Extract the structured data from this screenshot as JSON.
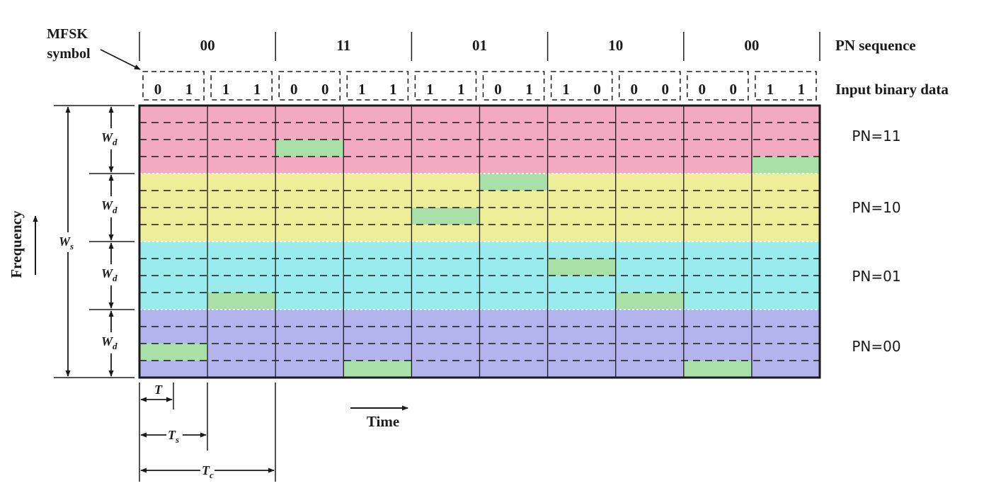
{
  "labels": {
    "mfsk_line1": "MFSK",
    "mfsk_line2": "symbol",
    "pn_sequence": "PN sequence",
    "input_binary_data": "Input binary data",
    "frequency": "Frequency",
    "time": "Time",
    "ws": "W",
    "ws_sub": "s",
    "wd": "W",
    "wd_sub": "d",
    "t": "T",
    "ts": "T",
    "ts_sub": "s",
    "tc": "T",
    "tc_sub": "c"
  },
  "pn_sequence": [
    "00",
    "11",
    "01",
    "10",
    "00"
  ],
  "bit_pairs": [
    [
      "0",
      "1"
    ],
    [
      "1",
      "1"
    ],
    [
      "0",
      "0"
    ],
    [
      "1",
      "1"
    ],
    [
      "1",
      "1"
    ],
    [
      "0",
      "1"
    ],
    [
      "1",
      "0"
    ],
    [
      "0",
      "0"
    ],
    [
      "0",
      "0"
    ],
    [
      "1",
      "1"
    ]
  ],
  "bands": [
    {
      "label": "PN=11",
      "color": "#f2a9c1"
    },
    {
      "label": "PN=10",
      "color": "#eded9a"
    },
    {
      "label": "PN=01",
      "color": "#9aebed"
    },
    {
      "label": "PN=00",
      "color": "#b3b3ed"
    }
  ],
  "highlight_color": "#a8e0a8",
  "hops": [
    {
      "symbol": 1,
      "channel": 15
    },
    {
      "symbol": 2,
      "channel": 12
    },
    {
      "symbol": 3,
      "channel": 3
    },
    {
      "symbol": 4,
      "channel": 16
    },
    {
      "symbol": 5,
      "channel": 7
    },
    {
      "symbol": 6,
      "channel": 5
    },
    {
      "symbol": 7,
      "channel": 10
    },
    {
      "symbol": 8,
      "channel": 12
    },
    {
      "symbol": 9,
      "channel": 16
    },
    {
      "symbol": 10,
      "channel": 4
    }
  ]
}
